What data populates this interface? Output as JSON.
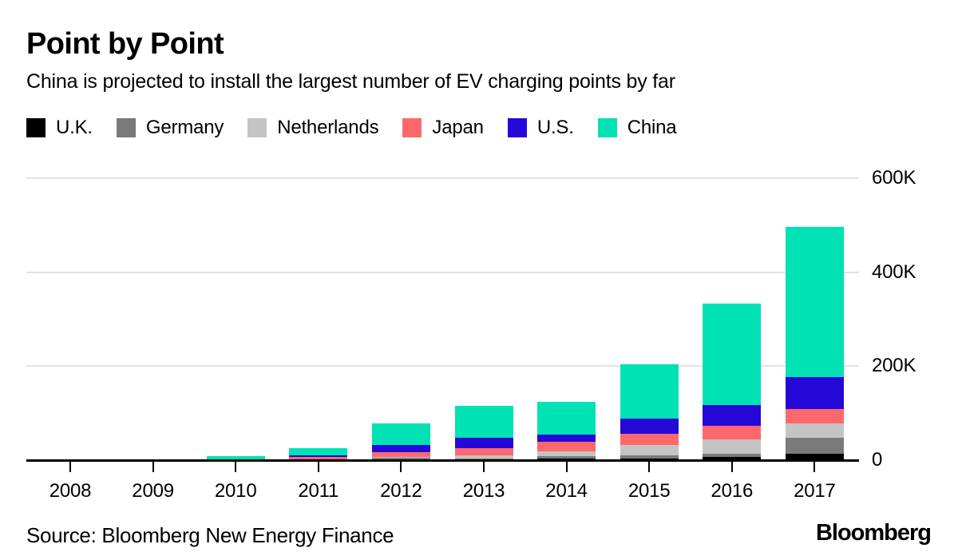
{
  "header": {
    "title": "Point by Point",
    "subtitle": "China is projected to install the largest number of EV charging points by far"
  },
  "legend": {
    "items": [
      {
        "label": "U.K.",
        "color": "#000000"
      },
      {
        "label": "Germany",
        "color": "#7a7a7a"
      },
      {
        "label": "Netherlands",
        "color": "#c4c4c4"
      },
      {
        "label": "Japan",
        "color": "#fe686c"
      },
      {
        "label": "U.S.",
        "color": "#2408d8"
      },
      {
        "label": "China",
        "color": "#00e2b3"
      }
    ]
  },
  "chart_data": {
    "type": "bar",
    "stacked": true,
    "title": "Point by Point",
    "subtitle": "China is projected to install the largest number of EV charging points by far",
    "categories": [
      "2008",
      "2009",
      "2010",
      "2011",
      "2012",
      "2013",
      "2014",
      "2015",
      "2016",
      "2017"
    ],
    "value_unit": "thousands (K) of EV charging points installed",
    "series": [
      {
        "name": "U.K.",
        "color": "#000000",
        "values": [
          0,
          0,
          0.1,
          0.3,
          2,
          1.5,
          3,
          4,
          7,
          13
        ]
      },
      {
        "name": "Germany",
        "color": "#7a7a7a",
        "values": [
          0,
          0,
          0.1,
          0.5,
          2.5,
          2.5,
          5,
          5.5,
          7,
          35
        ]
      },
      {
        "name": "Netherlands",
        "color": "#c4c4c4",
        "values": [
          0,
          0.1,
          0.3,
          0.7,
          3,
          5.5,
          11,
          22,
          30,
          30
        ]
      },
      {
        "name": "Japan",
        "color": "#fe686c",
        "values": [
          0.1,
          0.2,
          1.5,
          4.5,
          10,
          16.5,
          20,
          25,
          29,
          30
        ]
      },
      {
        "name": "U.S.",
        "color": "#2408d8",
        "values": [
          0.1,
          0.1,
          0.5,
          3.5,
          14,
          21,
          16,
          32,
          44,
          68
        ]
      },
      {
        "name": "China",
        "color": "#00e2b3",
        "values": [
          0,
          0,
          6.5,
          16,
          47,
          69,
          69,
          115,
          216,
          320
        ]
      }
    ],
    "totals_approx": [
      0.2,
      0.4,
      9,
      25.5,
      78.5,
      116,
      124,
      203.5,
      333,
      496
    ],
    "yticks": [
      {
        "value": 0,
        "label": "0"
      },
      {
        "value": 200,
        "label": "200K"
      },
      {
        "value": 400,
        "label": "400K"
      },
      {
        "value": 600,
        "label": "600K"
      }
    ],
    "ylim": [
      0,
      600
    ],
    "grid": "horizontal",
    "legend_position": "top",
    "series_order": "bottom-to-top"
  },
  "footer": {
    "source": "Source: Bloomberg New Energy Finance",
    "logo": "Bloomberg"
  }
}
